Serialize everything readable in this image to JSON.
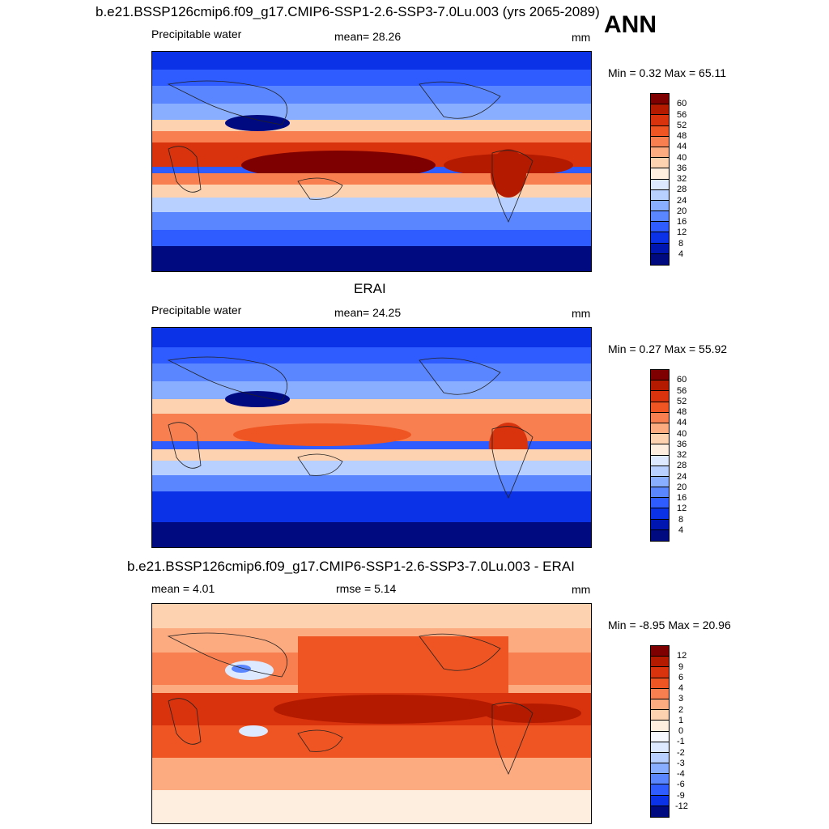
{
  "header": {
    "case_title": "b.e21.BSSP126cmip6.f09_g17.CMIP6-SSP1-2.6-SSP3-7.0Lu.003 (yrs 2065-2089)",
    "season": "ANN"
  },
  "panels": [
    {
      "id": "model",
      "title": "",
      "variable": "Precipitable water",
      "stat1": "mean=  28.26",
      "stat2": "",
      "units": "mm",
      "minmax": "Min =   0.32 Max =  65.11",
      "levels": [
        "60",
        "56",
        "52",
        "48",
        "44",
        "40",
        "36",
        "32",
        "28",
        "24",
        "20",
        "16",
        "12",
        "8",
        "4"
      ]
    },
    {
      "id": "obs",
      "title": "ERAI",
      "variable": "Precipitable water",
      "stat1": "mean=  24.25",
      "stat2": "",
      "units": "mm",
      "minmax": "Min =   0.27 Max =  55.92",
      "levels": [
        "60",
        "56",
        "52",
        "48",
        "44",
        "40",
        "36",
        "32",
        "28",
        "24",
        "20",
        "16",
        "12",
        "8",
        "4"
      ]
    },
    {
      "id": "diff",
      "title": "b.e21.BSSP126cmip6.f09_g17.CMIP6-SSP1-2.6-SSP3-7.0Lu.003 - ERAI",
      "variable": "",
      "stat1": "mean =   4.01",
      "stat2": "rmse =   5.14",
      "units": "mm",
      "minmax": "Min =  -8.95 Max =  20.96",
      "levels": [
        "12",
        "9",
        "6",
        "4",
        "3",
        "2",
        "1",
        "0",
        "-1",
        "-2",
        "-3",
        "-4",
        "-6",
        "-9",
        "-12"
      ]
    }
  ],
  "colors": {
    "abs_scale": [
      "#7f0000",
      "#b31a00",
      "#d9330d",
      "#ee5522",
      "#f88050",
      "#fcaa80",
      "#fdd2b0",
      "#fdeee0",
      "#dde9ff",
      "#b8d0ff",
      "#8aaeff",
      "#5a86ff",
      "#2f5cff",
      "#0b32e6",
      "#0016b0",
      "#000a80"
    ],
    "diff_scale": [
      "#7f0000",
      "#b31a00",
      "#d9330d",
      "#ee5522",
      "#f88050",
      "#fcaa80",
      "#fdd2b0",
      "#fdeee0",
      "#f5f8ff",
      "#dde9ff",
      "#b8d0ff",
      "#8aaeff",
      "#5a86ff",
      "#2f5cff",
      "#0b32e6",
      "#000a80"
    ]
  }
}
